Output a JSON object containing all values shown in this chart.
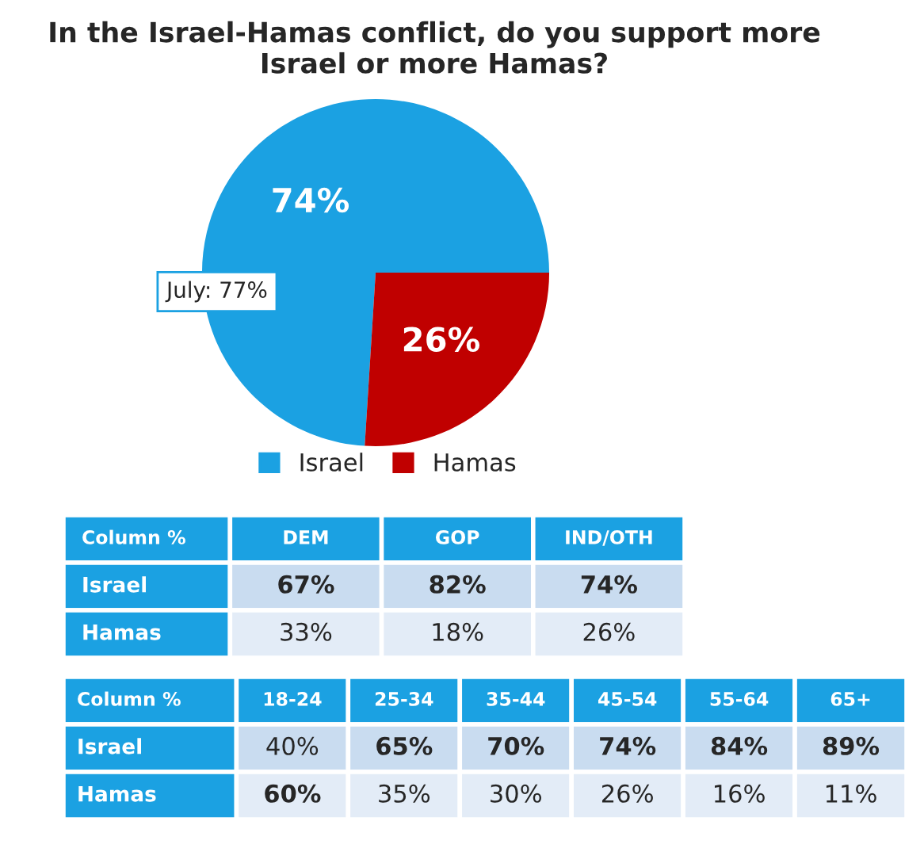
{
  "chart_data": [
    {
      "type": "pie",
      "title": "In the Israel-Hamas conflict, do you support more Israel or more Hamas?",
      "categories": [
        "Israel",
        "Hamas"
      ],
      "values": [
        74,
        26
      ],
      "colors": [
        "#1ba1e2",
        "#c00000"
      ],
      "value_labels": [
        "74%",
        "26%"
      ],
      "legend": "bottom",
      "annotations": [
        "July: 77%"
      ]
    },
    {
      "type": "heatmap",
      "title": "Column %",
      "categories": [
        "DEM",
        "GOP",
        "IND/OTH"
      ],
      "y_categories": [
        "Israel",
        "Hamas"
      ],
      "cells": [
        [
          67,
          82,
          74
        ],
        [
          33,
          18,
          26
        ]
      ],
      "cell_labels": [
        [
          "67%",
          "82%",
          "74%"
        ],
        [
          "33%",
          "18%",
          "26%"
        ]
      ]
    },
    {
      "type": "heatmap",
      "title": "Column %",
      "categories": [
        "18-24",
        "25-34",
        "35-44",
        "45-54",
        "55-64",
        "65+"
      ],
      "y_categories": [
        "Israel",
        "Hamas"
      ],
      "cells": [
        [
          40,
          65,
          70,
          74,
          84,
          89
        ],
        [
          60,
          35,
          30,
          26,
          16,
          11
        ]
      ],
      "cell_labels": [
        [
          "40%",
          "65%",
          "70%",
          "74%",
          "84%",
          "89%"
        ],
        [
          "60%",
          "35%",
          "30%",
          "26%",
          "16%",
          "11%"
        ]
      ]
    }
  ]
}
